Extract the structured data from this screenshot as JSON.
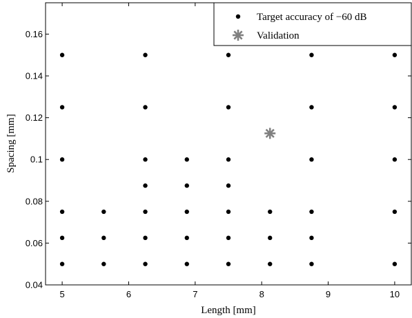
{
  "chart_data": {
    "type": "scatter",
    "xlabel": "Length [mm]",
    "ylabel": "Spacing [mm]",
    "xlim": [
      4.75,
      10.25
    ],
    "ylim": [
      0.04,
      0.175
    ],
    "xticks": [
      "5",
      "6",
      "7",
      "8",
      "9",
      "10"
    ],
    "yticks": [
      "0.04",
      "0.06",
      "0.08",
      "0.1",
      "0.12",
      "0.14",
      "0.16"
    ],
    "grid": false,
    "legend_position": "top-right",
    "series": [
      {
        "name": "Target accuracy of −60 dB",
        "marker": "dot",
        "color": "#000000",
        "points": [
          [
            5,
            0.05
          ],
          [
            5,
            0.0625
          ],
          [
            5,
            0.075
          ],
          [
            5,
            0.1
          ],
          [
            5,
            0.125
          ],
          [
            5,
            0.15
          ],
          [
            5.625,
            0.05
          ],
          [
            5.625,
            0.0625
          ],
          [
            5.625,
            0.075
          ],
          [
            6.25,
            0.05
          ],
          [
            6.25,
            0.0625
          ],
          [
            6.25,
            0.075
          ],
          [
            6.25,
            0.0875
          ],
          [
            6.25,
            0.1
          ],
          [
            6.25,
            0.125
          ],
          [
            6.25,
            0.15
          ],
          [
            6.875,
            0.05
          ],
          [
            6.875,
            0.0625
          ],
          [
            6.875,
            0.075
          ],
          [
            6.875,
            0.0875
          ],
          [
            6.875,
            0.1
          ],
          [
            7.5,
            0.05
          ],
          [
            7.5,
            0.0625
          ],
          [
            7.5,
            0.075
          ],
          [
            7.5,
            0.0875
          ],
          [
            7.5,
            0.1
          ],
          [
            7.5,
            0.125
          ],
          [
            7.5,
            0.15
          ],
          [
            8.125,
            0.05
          ],
          [
            8.125,
            0.0625
          ],
          [
            8.125,
            0.075
          ],
          [
            8.75,
            0.05
          ],
          [
            8.75,
            0.0625
          ],
          [
            8.75,
            0.075
          ],
          [
            8.75,
            0.1
          ],
          [
            8.75,
            0.125
          ],
          [
            8.75,
            0.15
          ],
          [
            10,
            0.05
          ],
          [
            10,
            0.075
          ],
          [
            10,
            0.1
          ],
          [
            10,
            0.125
          ],
          [
            10,
            0.15
          ]
        ]
      },
      {
        "name": "Validation",
        "marker": "asterisk",
        "color": "#808080",
        "points": [
          [
            8.125,
            0.1125
          ]
        ]
      }
    ]
  }
}
